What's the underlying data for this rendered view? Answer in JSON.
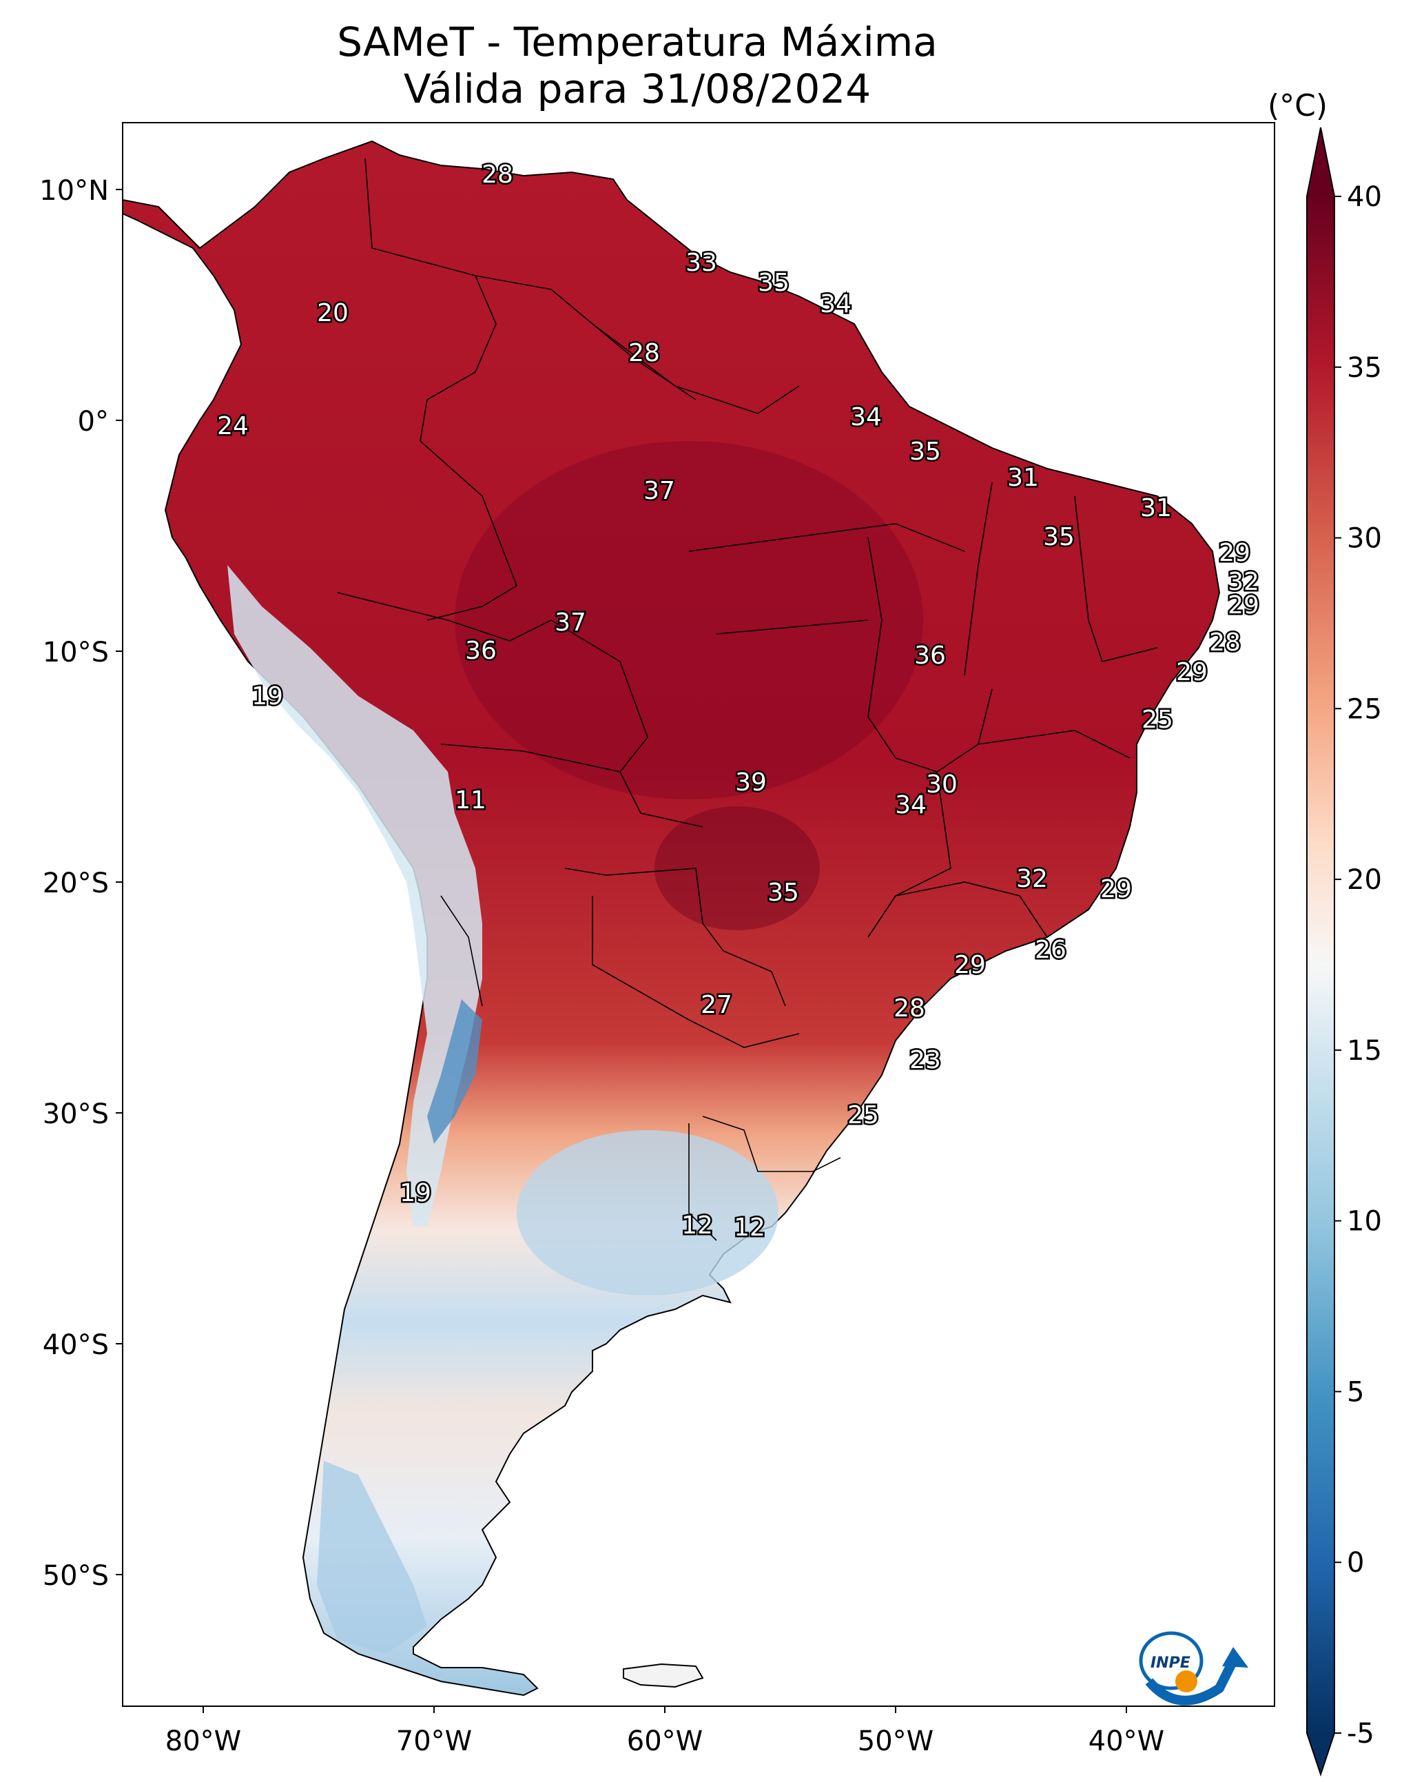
{
  "title_line1": "SAMeT - Temperatura Máxima",
  "title_line2": "Válida para 31/08/2024",
  "colorbar": {
    "unit": "(°C)",
    "ticks": [
      "40",
      "35",
      "30",
      "25",
      "20",
      "15",
      "10",
      "5",
      "0",
      "-5"
    ],
    "tick_values": [
      40,
      35,
      30,
      25,
      20,
      15,
      10,
      5,
      0,
      -5
    ],
    "range": [
      -5,
      40
    ],
    "colors": [
      "#053061",
      "#2166ac",
      "#4393c3",
      "#92c5de",
      "#d1e5f0",
      "#f7f7f7",
      "#fddbc7",
      "#f4a582",
      "#d6604d",
      "#b2182b",
      "#67001f"
    ]
  },
  "axes": {
    "lat_ticks": [
      "10°N",
      "0°",
      "10°S",
      "20°S",
      "30°S",
      "40°S",
      "50°S"
    ],
    "lon_ticks": [
      "80°W",
      "70°W",
      "60°W",
      "50°W",
      "40°W"
    ]
  },
  "temperature_labels": [
    {
      "value": "28"
    },
    {
      "value": "33"
    },
    {
      "value": "35"
    },
    {
      "value": "34"
    },
    {
      "value": "20"
    },
    {
      "value": "28"
    },
    {
      "value": "24"
    },
    {
      "value": "34"
    },
    {
      "value": "35"
    },
    {
      "value": "31"
    },
    {
      "value": "37"
    },
    {
      "value": "31"
    },
    {
      "value": "35"
    },
    {
      "value": "29"
    },
    {
      "value": "32"
    },
    {
      "value": "29"
    },
    {
      "value": "37"
    },
    {
      "value": "36"
    },
    {
      "value": "36"
    },
    {
      "value": "28"
    },
    {
      "value": "29"
    },
    {
      "value": "19"
    },
    {
      "value": "25"
    },
    {
      "value": "30"
    },
    {
      "value": "39"
    },
    {
      "value": "11"
    },
    {
      "value": "34"
    },
    {
      "value": "32"
    },
    {
      "value": "29"
    },
    {
      "value": "35"
    },
    {
      "value": "26"
    },
    {
      "value": "29"
    },
    {
      "value": "27"
    },
    {
      "value": "28"
    },
    {
      "value": "23"
    },
    {
      "value": "25"
    },
    {
      "value": "19"
    },
    {
      "value": "12"
    },
    {
      "value": "12"
    }
  ],
  "logo": {
    "text": "INPE"
  }
}
